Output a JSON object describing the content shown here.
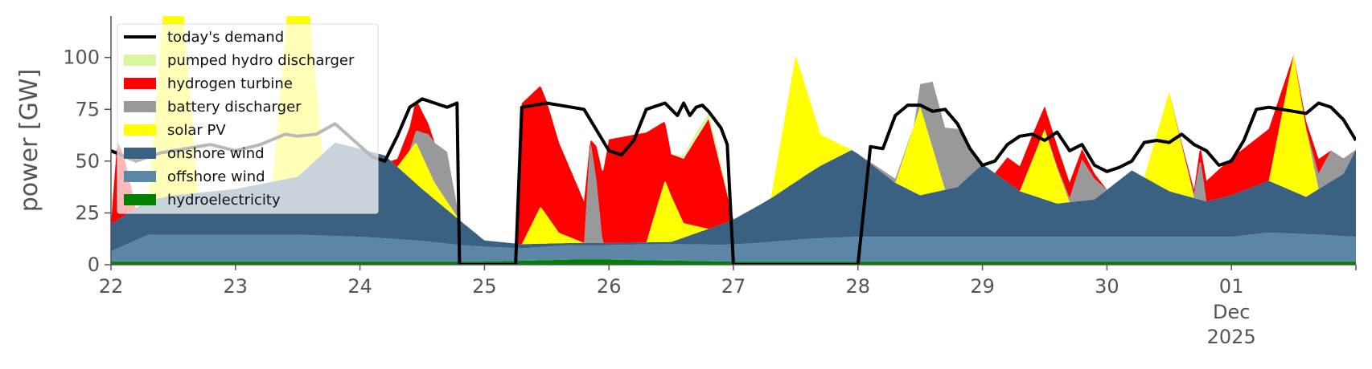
{
  "chart_data": {
    "type": "area",
    "title": "",
    "xlabel": "",
    "ylabel": "power [GW]",
    "x_range_days": [
      22,
      32
    ],
    "ylim": [
      0,
      120
    ],
    "y_ticks": [
      0,
      25,
      50,
      75,
      100
    ],
    "x_ticks": [
      {
        "day": 22,
        "label": "22"
      },
      {
        "day": 23,
        "label": "23"
      },
      {
        "day": 24,
        "label": "24"
      },
      {
        "day": 25,
        "label": "25"
      },
      {
        "day": 26,
        "label": "26"
      },
      {
        "day": 27,
        "label": "27"
      },
      {
        "day": 28,
        "label": "28"
      },
      {
        "day": 29,
        "label": "29"
      },
      {
        "day": 30,
        "label": "30"
      },
      {
        "day": 31,
        "label": "01"
      }
    ],
    "x_sublabels": [
      "Dec",
      "2025"
    ],
    "grid": false,
    "legend_position": "top-left",
    "legend": [
      {
        "label": "today's demand",
        "kind": "line",
        "color": "#000000"
      },
      {
        "label": "pumped hydro discharger",
        "kind": "patch",
        "color": "#d9f5a0"
      },
      {
        "label": "hydrogen turbine",
        "kind": "patch",
        "color": "#ff0000"
      },
      {
        "label": "battery discharger",
        "kind": "patch",
        "color": "#999999"
      },
      {
        "label": "solar PV",
        "kind": "patch",
        "color": "#ffff00"
      },
      {
        "label": "onshore wind",
        "kind": "patch",
        "color": "#3b6182"
      },
      {
        "label": "offshore wind",
        "kind": "patch",
        "color": "#5b86a8"
      },
      {
        "label": "hydroelectricity",
        "kind": "patch",
        "color": "#008000"
      }
    ],
    "series": [
      {
        "name": "hydroelectricity",
        "color": "#008000",
        "x": [
          22,
          23,
          24,
          25,
          25.7,
          25.9,
          26,
          27,
          28,
          32
        ],
        "y": [
          1.5,
          1.5,
          1.5,
          1.5,
          2.5,
          2.5,
          2.5,
          1.5,
          1.5,
          1.5
        ]
      },
      {
        "name": "offshore wind",
        "color": "#5b86a8",
        "x": [
          22,
          22.3,
          23,
          23.5,
          24,
          24.5,
          24.8,
          25.3,
          25.7,
          26,
          26.5,
          26.9,
          27.2,
          27.6,
          28,
          28.5,
          29,
          29.5,
          30,
          30.5,
          31,
          31.3,
          31.7,
          32
        ],
        "y": [
          5,
          13,
          13,
          13,
          12,
          10,
          8,
          6,
          7,
          7,
          8,
          8,
          9,
          11,
          12,
          12,
          12,
          12,
          12,
          12,
          12,
          14,
          13,
          12
        ]
      },
      {
        "name": "onshore wind",
        "color": "#3b6182",
        "x": [
          22,
          22.5,
          23,
          23.5,
          23.8,
          24.2,
          24.5,
          24.8,
          25,
          25.3,
          25.7,
          26,
          26.5,
          27,
          27.3,
          27.7,
          27.95,
          28,
          28.3,
          28.5,
          28.8,
          29,
          29.3,
          29.6,
          29.9,
          30.2,
          30.5,
          30.8,
          31,
          31.3,
          31.6,
          31.9,
          32
        ],
        "y": [
          13,
          19,
          22,
          28,
          45,
          40,
          25,
          12,
          3,
          2,
          1,
          1,
          1,
          12,
          21,
          35,
          42,
          40,
          26,
          20,
          24,
          35,
          22,
          16,
          18,
          32,
          22,
          17,
          20,
          25,
          18,
          30,
          42
        ]
      },
      {
        "name": "solar PV",
        "color": "#ffff00",
        "x": [
          22,
          22.3,
          22.5,
          22.7,
          23,
          23.3,
          23.5,
          23.7,
          24,
          24.3,
          24.45,
          24.6,
          24.8,
          25,
          25.3,
          25.45,
          25.6,
          25.8,
          26,
          26.3,
          26.45,
          26.6,
          26.8,
          27,
          27.3,
          27.5,
          27.7,
          27.95,
          28,
          28.3,
          28.5,
          28.7,
          29,
          29.3,
          29.5,
          29.7,
          30,
          30.3,
          30.5,
          30.7,
          31,
          31.3,
          31.5,
          31.7,
          32
        ],
        "y": [
          0,
          0,
          150,
          0,
          0,
          0,
          140,
          0,
          0,
          0,
          20,
          8,
          0,
          0,
          0,
          18,
          5,
          0,
          0,
          0,
          30,
          7,
          0,
          0,
          0,
          61,
          15,
          0,
          0,
          0,
          43,
          0,
          0,
          0,
          34,
          0,
          0,
          0,
          48,
          0,
          0,
          0,
          66,
          0,
          0
        ]
      },
      {
        "name": "battery discharger",
        "color": "#999999",
        "x": [
          22,
          24.4,
          24.55,
          24.7,
          24.8,
          25,
          25.8,
          25.85,
          25.9,
          25.95,
          26,
          28,
          28.3,
          28.45,
          28.6,
          28.8,
          29,
          29.2,
          29.5,
          29.7,
          29.8,
          30,
          30.3,
          30.6,
          30.7,
          30.75,
          30.8,
          31,
          31.3,
          31.6,
          31.8,
          32
        ],
        "y": [
          0,
          0,
          17,
          24,
          0,
          0,
          0,
          50,
          30,
          0,
          0,
          0,
          2,
          0,
          32,
          28,
          0,
          0,
          0,
          2,
          20,
          0,
          0,
          0,
          2,
          20,
          0,
          0,
          0,
          0,
          15,
          0
        ]
      },
      {
        "name": "hydrogen turbine",
        "color": "#ff0000",
        "x": [
          22,
          22.05,
          22.1,
          22.2,
          24.25,
          24.45,
          24.6,
          24.8,
          25,
          25.25,
          25.3,
          25.5,
          25.8,
          25.85,
          26,
          26.3,
          26.5,
          26.8,
          27,
          28,
          29.1,
          29.2,
          29.4,
          29.6,
          29.8,
          30,
          30.1,
          30.5,
          30.7,
          30.8,
          31,
          31.3,
          31.5,
          31.7,
          31.8,
          32
        ],
        "y": [
          0,
          38,
          30,
          0,
          0,
          15,
          0,
          0,
          0,
          0,
          68,
          55,
          20,
          0,
          50,
          53,
          20,
          53,
          0,
          0,
          0,
          12,
          12,
          10,
          5,
          0,
          0,
          0,
          2,
          10,
          18,
          25,
          0,
          7,
          0,
          0
        ]
      },
      {
        "name": "pumped hydro discharger",
        "color": "#d9f5a0",
        "x": [
          22,
          26.5,
          26.7,
          26.9,
          27,
          32
        ],
        "y": [
          0,
          0,
          3,
          3,
          0,
          0
        ]
      }
    ],
    "demand": {
      "name": "today's demand",
      "color": "#000000",
      "x": [
        22,
        22.2,
        22.4,
        22.6,
        22.8,
        23,
        23.2,
        23.4,
        23.5,
        23.65,
        23.8,
        23.95,
        24.1,
        24.2,
        24.3,
        24.4,
        24.5,
        24.6,
        24.7,
        24.78,
        24.8,
        25.25,
        25.3,
        25.5,
        25.7,
        25.8,
        25.9,
        26,
        26.1,
        26.2,
        26.3,
        26.45,
        26.55,
        26.6,
        26.65,
        26.7,
        26.75,
        26.8,
        26.9,
        26.95,
        27,
        28,
        28.1,
        28.2,
        28.3,
        28.4,
        28.5,
        28.6,
        28.7,
        28.8,
        28.9,
        29,
        29.1,
        29.2,
        29.3,
        29.4,
        29.5,
        29.6,
        29.7,
        29.8,
        29.9,
        30,
        30.1,
        30.2,
        30.3,
        30.4,
        30.5,
        30.6,
        30.7,
        30.8,
        30.9,
        31,
        31.1,
        31.2,
        31.3,
        31.4,
        31.5,
        31.6,
        31.7,
        31.8,
        31.9,
        32
      ],
      "y": [
        55,
        50,
        54,
        56,
        58,
        55,
        58,
        63,
        62,
        63,
        68,
        60,
        52,
        50,
        62,
        76,
        80,
        78,
        76,
        78,
        0,
        0,
        76,
        78,
        76,
        75,
        65,
        55,
        53,
        60,
        75,
        78,
        72,
        78,
        72,
        76,
        77,
        74,
        66,
        58,
        0,
        0,
        57,
        56,
        72,
        77,
        77,
        74,
        75,
        68,
        56,
        48,
        50,
        58,
        62,
        63,
        60,
        64,
        55,
        58,
        48,
        45,
        47,
        50,
        59,
        60,
        59,
        63,
        58,
        55,
        48,
        50,
        60,
        75,
        76,
        75,
        74,
        73,
        78,
        76,
        70,
        60
      ]
    }
  }
}
